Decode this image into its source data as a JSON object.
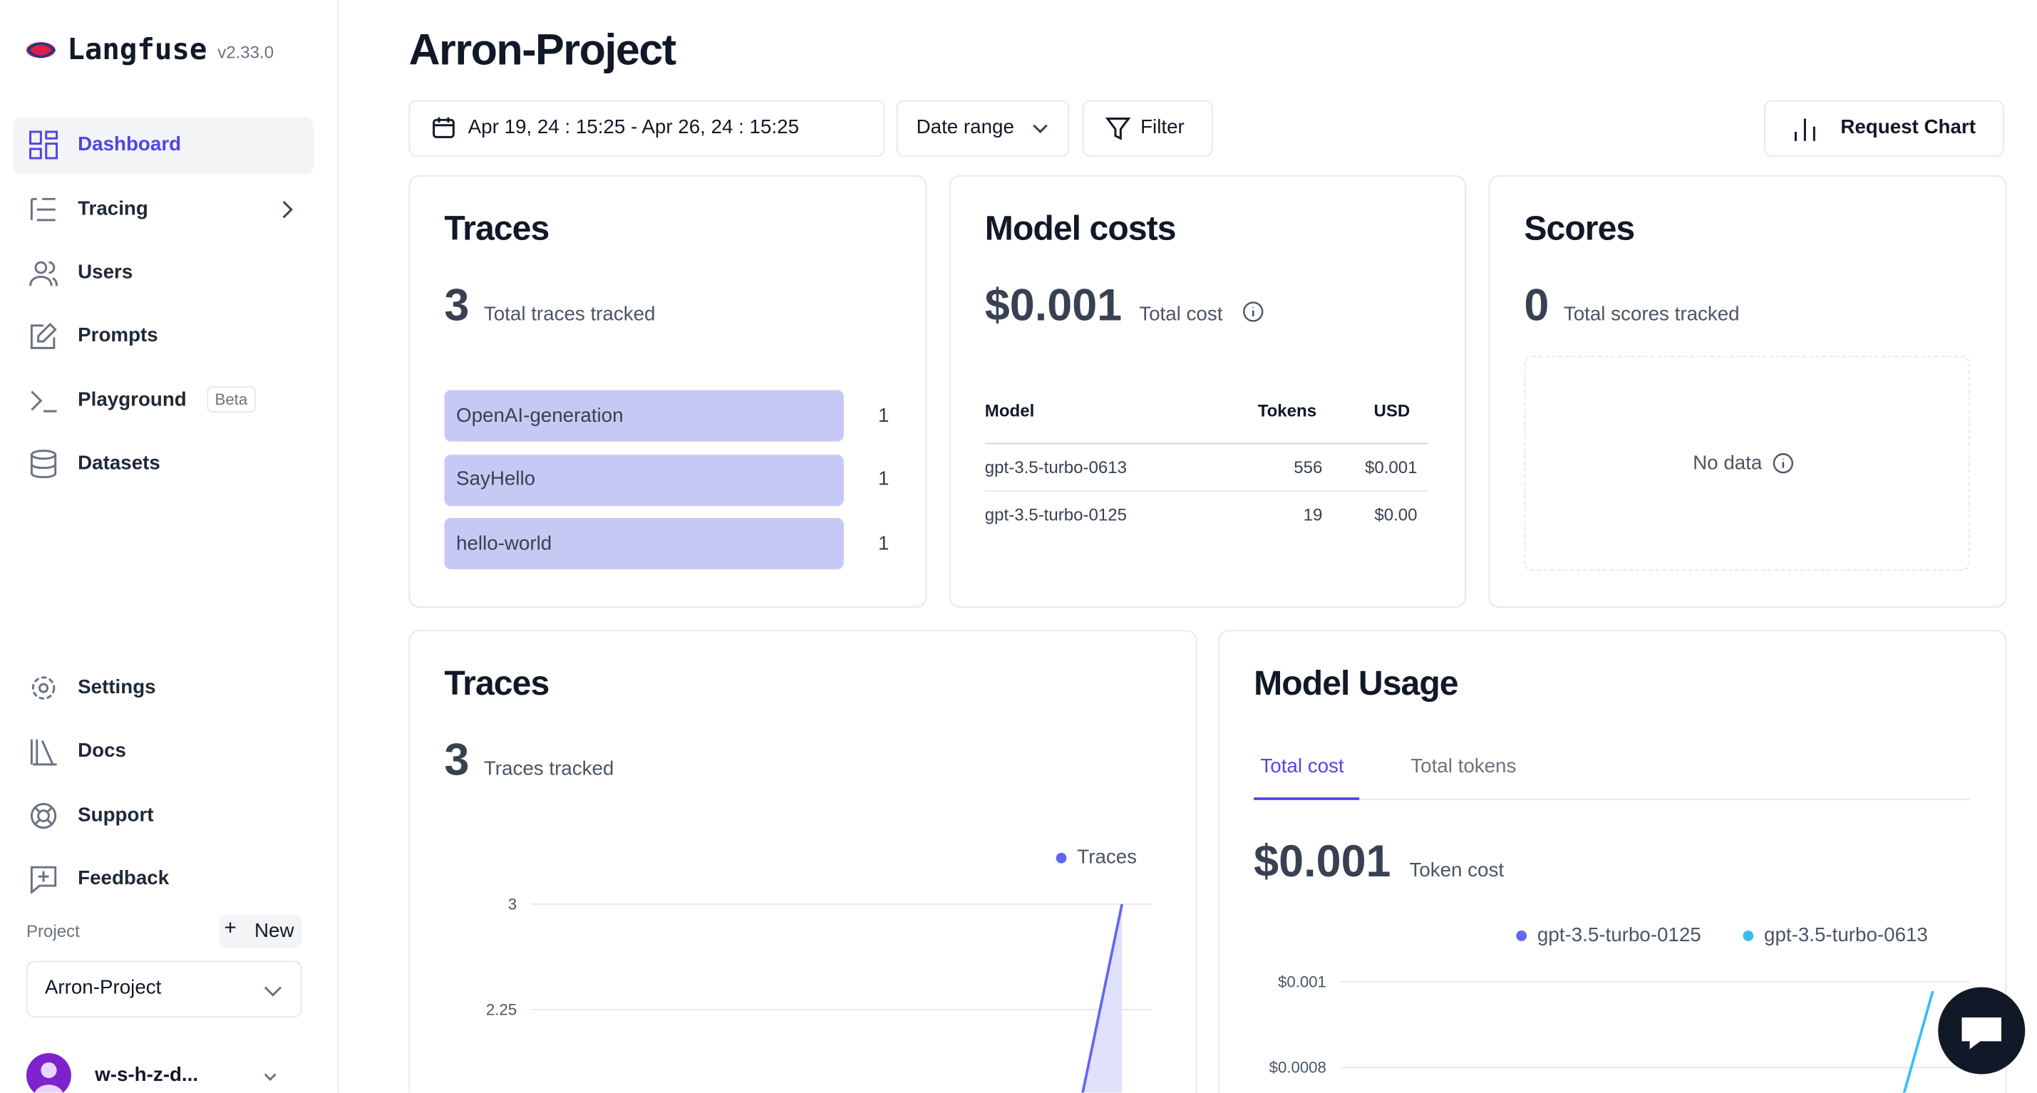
{
  "sidebar": {
    "brand": "Langfuse",
    "version": "v2.33.0",
    "nav": [
      {
        "label": "Dashboard"
      },
      {
        "label": "Tracing"
      },
      {
        "label": "Users"
      },
      {
        "label": "Prompts"
      },
      {
        "label": "Playground",
        "badge": "Beta"
      },
      {
        "label": "Datasets"
      }
    ],
    "bottom_nav": [
      "Settings",
      "Docs",
      "Support",
      "Feedback"
    ],
    "project_label": "Project",
    "new_button": "New",
    "project_select": "Arron-Project",
    "user": "w-s-h-z-d..."
  },
  "header": {
    "title": "Arron-Project",
    "date_range_value": "Apr 19, 24 : 15:25 - Apr 26, 24 : 15:25",
    "date_range_select": "Date range",
    "filter": "Filter",
    "request_chart": "Request Chart"
  },
  "traces_card": {
    "title": "Traces",
    "count": 3,
    "caption": "Total traces tracked",
    "rows": [
      {
        "name": "OpenAI-generation",
        "count": 1
      },
      {
        "name": "SayHello",
        "count": 1
      },
      {
        "name": "hello-world",
        "count": 1
      }
    ]
  },
  "costs_card": {
    "title": "Model costs",
    "total": "$0.001",
    "caption": "Total cost",
    "headers": [
      "Model",
      "Tokens",
      "USD"
    ],
    "rows": [
      [
        "gpt-3.5-turbo-0613",
        556,
        "$0.001"
      ],
      [
        "gpt-3.5-turbo-0125",
        19,
        "$0.00"
      ]
    ]
  },
  "scores_card": {
    "title": "Scores",
    "count": 0,
    "caption": "Total scores tracked",
    "empty": "No data"
  },
  "traces_chart_card": {
    "title": "Traces",
    "count": 3,
    "caption": "Traces tracked",
    "legend": "Traces",
    "y_ticks": [
      3,
      2.25
    ]
  },
  "usage_card": {
    "title": "Model Usage",
    "tabs": [
      "Total cost",
      "Total tokens"
    ],
    "total": "$0.001",
    "caption": "Token cost",
    "legend": [
      "gpt-3.5-turbo-0125",
      "gpt-3.5-turbo-0613"
    ],
    "y_ticks": [
      "$0.001",
      "$0.0008"
    ]
  }
}
